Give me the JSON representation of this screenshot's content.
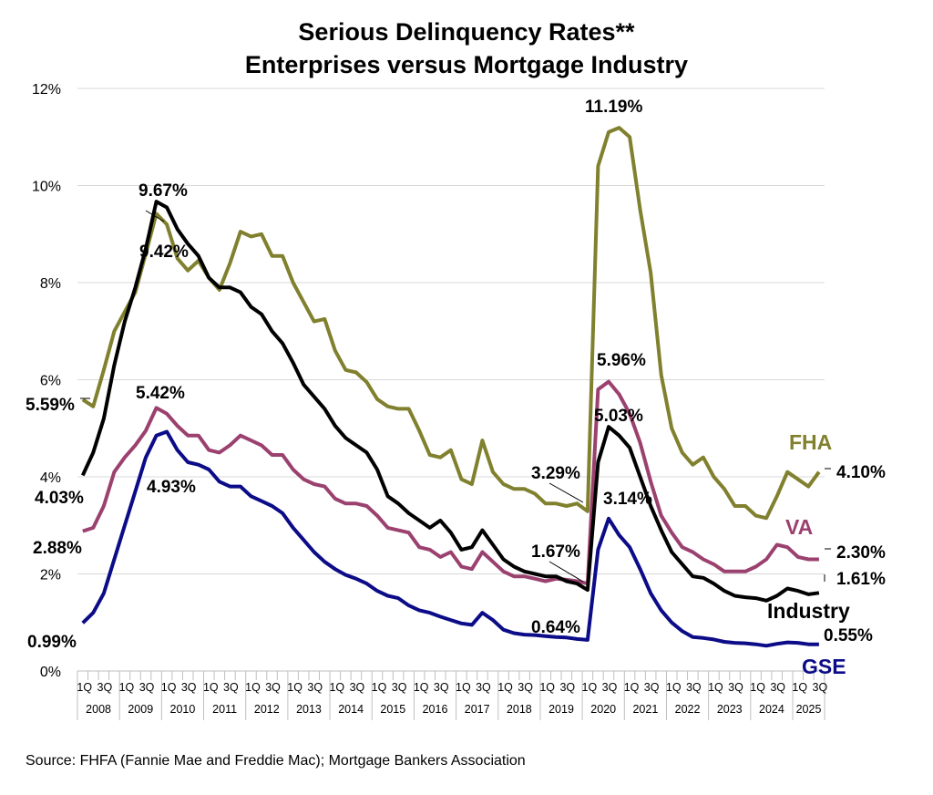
{
  "chart_data": {
    "type": "line",
    "title": "Serious Delinquency Rates**",
    "subtitle": "Enterprises versus Mortgage Industry",
    "xlabel": "",
    "ylabel": "",
    "ylim": [
      0,
      12
    ],
    "y_ticks": [
      "0%",
      "2%",
      "4%",
      "6%",
      "8%",
      "10%",
      "12%"
    ],
    "grid": true,
    "quarter_tick_labels": [
      "1Q",
      "3Q"
    ],
    "years": [
      "2008",
      "2009",
      "2010",
      "2011",
      "2012",
      "2013",
      "2014",
      "2015",
      "2016",
      "2017",
      "2018",
      "2019",
      "2020",
      "2021",
      "2022",
      "2023",
      "2024",
      "2025"
    ],
    "x_range": [
      "2008 1Q",
      "2025 3Q"
    ],
    "series": [
      {
        "name": "FHA",
        "color": "#80802e",
        "values": [
          5.59,
          5.45,
          6.2,
          7.0,
          7.4,
          7.8,
          8.6,
          9.42,
          9.2,
          8.5,
          8.25,
          8.45,
          8.1,
          7.85,
          8.4,
          9.05,
          8.95,
          9.0,
          8.55,
          8.55,
          8.0,
          7.6,
          7.2,
          7.25,
          6.6,
          6.2,
          6.15,
          5.95,
          5.6,
          5.45,
          5.4,
          5.4,
          4.95,
          4.45,
          4.4,
          4.55,
          3.95,
          3.85,
          4.75,
          4.1,
          3.85,
          3.75,
          3.75,
          3.65,
          3.45,
          3.45,
          3.4,
          3.45,
          3.29,
          10.4,
          11.1,
          11.19,
          11.0,
          9.5,
          8.2,
          6.1,
          5.0,
          4.5,
          4.25,
          4.4,
          4.0,
          3.75,
          3.4,
          3.4,
          3.2,
          3.15,
          3.6,
          4.1,
          3.95,
          3.8,
          4.1
        ]
      },
      {
        "name": "VA",
        "color": "#9b416f",
        "values": [
          2.88,
          2.95,
          3.4,
          4.1,
          4.4,
          4.65,
          4.95,
          5.42,
          5.3,
          5.05,
          4.85,
          4.85,
          4.55,
          4.5,
          4.65,
          4.85,
          4.75,
          4.65,
          4.45,
          4.45,
          4.15,
          3.95,
          3.85,
          3.8,
          3.55,
          3.45,
          3.45,
          3.4,
          3.2,
          2.95,
          2.9,
          2.85,
          2.55,
          2.5,
          2.35,
          2.45,
          2.15,
          2.1,
          2.45,
          2.25,
          2.05,
          1.95,
          1.95,
          1.9,
          1.85,
          1.9,
          1.88,
          1.85,
          1.8,
          5.8,
          5.96,
          5.7,
          5.3,
          4.7,
          3.9,
          3.2,
          2.85,
          2.55,
          2.45,
          2.3,
          2.2,
          2.05,
          2.05,
          2.05,
          2.15,
          2.3,
          2.6,
          2.55,
          2.35,
          2.3,
          2.3
        ]
      },
      {
        "name": "Industry",
        "color": "#000000",
        "values": [
          4.03,
          4.5,
          5.2,
          6.3,
          7.2,
          7.9,
          8.7,
          9.67,
          9.55,
          9.1,
          8.8,
          8.55,
          8.1,
          7.9,
          7.9,
          7.8,
          7.5,
          7.35,
          7.0,
          6.75,
          6.35,
          5.9,
          5.65,
          5.4,
          5.05,
          4.8,
          4.65,
          4.5,
          4.15,
          3.6,
          3.45,
          3.25,
          3.1,
          2.95,
          3.1,
          2.85,
          2.5,
          2.55,
          2.9,
          2.6,
          2.3,
          2.15,
          2.05,
          2.0,
          1.95,
          1.95,
          1.85,
          1.8,
          1.67,
          4.3,
          5.03,
          4.85,
          4.6,
          4.0,
          3.4,
          2.9,
          2.45,
          2.2,
          1.95,
          1.92,
          1.8,
          1.65,
          1.55,
          1.52,
          1.5,
          1.45,
          1.55,
          1.7,
          1.65,
          1.58,
          1.61
        ]
      },
      {
        "name": "GSE",
        "color": "#0c0c88",
        "values": [
          0.99,
          1.2,
          1.6,
          2.3,
          3.0,
          3.7,
          4.4,
          4.85,
          4.93,
          4.55,
          4.3,
          4.25,
          4.15,
          3.9,
          3.8,
          3.8,
          3.6,
          3.5,
          3.4,
          3.25,
          2.95,
          2.7,
          2.45,
          2.25,
          2.1,
          1.98,
          1.9,
          1.8,
          1.65,
          1.55,
          1.5,
          1.35,
          1.25,
          1.2,
          1.12,
          1.05,
          0.98,
          0.95,
          1.2,
          1.05,
          0.85,
          0.78,
          0.75,
          0.74,
          0.72,
          0.7,
          0.69,
          0.66,
          0.64,
          2.5,
          3.14,
          2.8,
          2.55,
          2.1,
          1.6,
          1.25,
          1.0,
          0.82,
          0.7,
          0.68,
          0.65,
          0.6,
          0.58,
          0.57,
          0.55,
          0.52,
          0.56,
          0.59,
          0.58,
          0.55,
          0.55
        ]
      }
    ],
    "data_labels": [
      "5.59%",
      "4.03%",
      "2.88%",
      "0.99%",
      "9.67%",
      "9.42%",
      "5.42%",
      "4.93%",
      "3.29%",
      "1.67%",
      "0.64%",
      "11.19%",
      "5.96%",
      "5.03%",
      "3.14%",
      "4.10%",
      "2.30%",
      "1.61%",
      "0.55%"
    ],
    "source": "Source: FHFA (Fannie Mae and Freddie Mac); Mortgage Bankers Association"
  }
}
